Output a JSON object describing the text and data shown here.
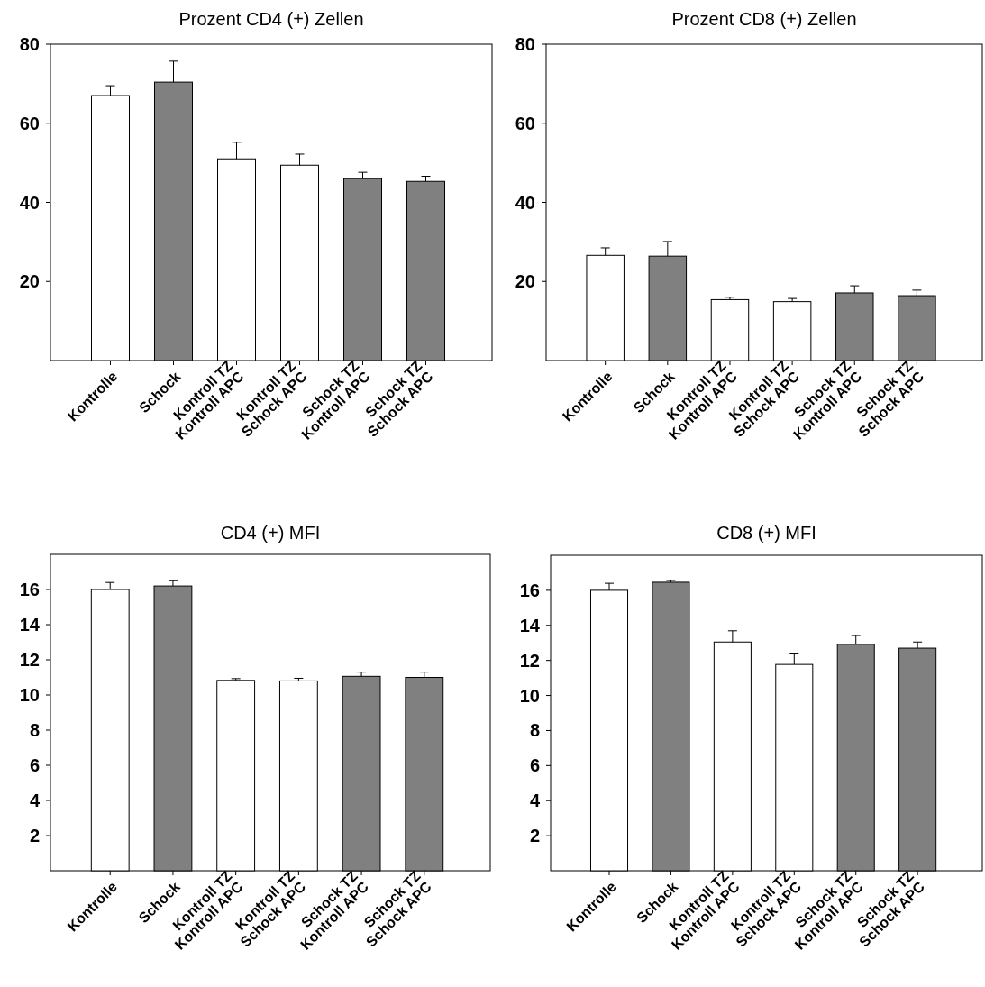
{
  "chart_data": [
    {
      "type": "bar",
      "title": "Prozent CD4 (+) Zellen",
      "categories": [
        "Kontrolle",
        "Schock",
        "Kontroll TZ\nKontroll APC",
        "Kontroll TZ\nSchock APC",
        "Schock TZ\nKontroll APC",
        "Schock TZ\nSchock APC"
      ],
      "values": [
        67.0,
        70.4,
        51.0,
        49.4,
        46.0,
        45.3
      ],
      "errors": [
        2.5,
        5.3,
        4.2,
        2.8,
        1.6,
        1.3
      ],
      "colors": [
        "#ffffff",
        "#808080",
        "#ffffff",
        "#ffffff",
        "#808080",
        "#808080"
      ],
      "ylim": [
        0,
        80
      ],
      "yticks": [
        20,
        40,
        60,
        80
      ],
      "grid": false
    },
    {
      "type": "bar",
      "title": "Prozent CD8 (+) Zellen",
      "categories": [
        "Kontrolle",
        "Schock",
        "Kontroll TZ\nKontroll APC",
        "Kontroll TZ\nSchock APC",
        "Schock TZ\nKontroll APC",
        "Schock TZ\nSchock APC"
      ],
      "values": [
        26.6,
        26.4,
        15.4,
        14.9,
        17.1,
        16.4
      ],
      "errors": [
        1.9,
        3.7,
        0.6,
        0.8,
        1.8,
        1.4
      ],
      "colors": [
        "#ffffff",
        "#808080",
        "#ffffff",
        "#ffffff",
        "#808080",
        "#808080"
      ],
      "ylim": [
        0,
        80
      ],
      "yticks": [
        20,
        40,
        60,
        80
      ],
      "grid": false
    },
    {
      "type": "bar",
      "title": "CD4 (+) MFI",
      "categories": [
        "Kontrolle",
        "Schock",
        "Kontroll TZ\nKontroll APC",
        "Kontroll TZ\nSchock APC",
        "Schock TZ\nKontroll APC",
        "Schock TZ\nSchock APC"
      ],
      "values": [
        16.0,
        16.2,
        10.83,
        10.8,
        11.06,
        11.0
      ],
      "errors": [
        0.4,
        0.3,
        0.1,
        0.15,
        0.24,
        0.3
      ],
      "colors": [
        "#ffffff",
        "#808080",
        "#ffffff",
        "#ffffff",
        "#808080",
        "#808080"
      ],
      "ylim": [
        0,
        18
      ],
      "yticks": [
        2,
        4,
        6,
        8,
        10,
        12,
        14,
        16
      ],
      "grid": false
    },
    {
      "type": "bar",
      "title": "CD8 (+) MFI",
      "categories": [
        "Kontrolle",
        "Schock",
        "Kontroll TZ\nKontroll APC",
        "Kontroll TZ\nSchock APC",
        "Schock TZ\nKontroll APC",
        "Schock TZ\nSchock APC"
      ],
      "values": [
        16.0,
        16.46,
        13.05,
        11.77,
        12.92,
        12.7
      ],
      "errors": [
        0.4,
        0.1,
        0.64,
        0.6,
        0.5,
        0.35
      ],
      "colors": [
        "#ffffff",
        "#808080",
        "#ffffff",
        "#ffffff",
        "#808080",
        "#808080"
      ],
      "ylim": [
        0,
        18
      ],
      "yticks": [
        2,
        4,
        6,
        8,
        10,
        12,
        14,
        16
      ],
      "grid": false
    }
  ]
}
